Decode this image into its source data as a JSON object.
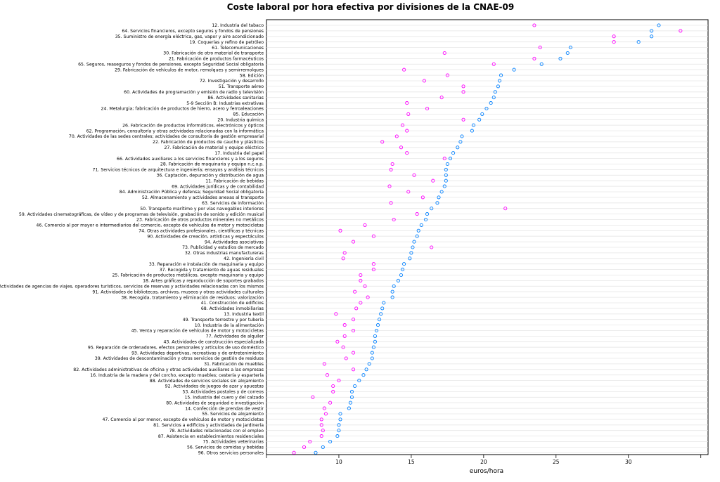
{
  "chart_data": {
    "type": "scatter",
    "title": "Coste laboral por hora efectiva por divisiones de la CNAE-09",
    "xlabel": "euros/hora",
    "xlim": [
      5,
      35.5
    ],
    "xticks": [
      10,
      15,
      20,
      25,
      30
    ],
    "grid": true,
    "series_colors": [
      "#0080ff",
      "#ff00ff"
    ],
    "categories": [
      "12. Industria del tabaco",
      "64. Servicios financieros, excepto seguros y fondos de pensiones",
      "35. Suministro de energía eléctrica, gas, vapor y aire acondicionado",
      "19. Coquerías y refino de petróleo",
      "61. Telecomunicaciones",
      "30. Fabricación de otro material de transporte",
      "21. Fabricación de productos farmacéuticos",
      "65. Seguros, reaseguros y fondos de pensiones, excepto Seguridad Social obligatoria",
      "29. Fabricación de vehículos de motor, remolques y semirremolques",
      "58. Edición",
      "72. Investigación y desarrollo",
      "51. Transporte aéreo",
      "60. Actividades de programación y emisión de radio y televisión",
      "86. Actividades sanitarias",
      "5-9 Sección B: Industrias extrativas",
      "24. Metalurgia; fabricación de productos de hierro, acero y ferroaleaciones",
      "85. Educación",
      "20. Industria química",
      "26. Fabricación de productos informáticos, electrónicos y ópticos",
      "62. Programación, consultoría y otras actividades relacionadas con la informática",
      "70. Actividades de las sedes centrales; actividades de consultoría de gestión empresarial",
      "22. Fabricación de productos de caucho y plásticos",
      "27. Fabricación de material y equipo eléctrico",
      "17. Industria del papel",
      "66. Actividades auxiliares a los servicios financieros y a los seguros",
      "28. Fabricación de maquinaria y equipo n.c.o.p.",
      "71. Servicios técnicos de arquitectura e ingeniería; ensayos y análisis técnicos",
      "36. Captación, depuración y distribución de agua",
      "11. Fabricación de bebidas",
      "69. Actividades jurídicas y de contabilidad",
      "84. Administración Pública y defensa; Seguridad Social obligatoria",
      "52. Almacenamiento y actividades anexas al transporte",
      "63. Servicios de información",
      "50. Transporte marítimo y por vías navegables interiores",
      "59. Actividades cinematográficas, de vídeo y de programas de televisión, grabación de sonido y edición musical",
      "23. Fabricación de otros productos minerales no metálicos",
      "46. Comercio al por mayor e intermediarios del comercio, excepto de vehículos de motor y motocicletas",
      "74. Otras actividades profesionales, científicas y técnicas",
      "90. Actividades de creación, artísticas y espectáculos",
      "94. Actividades asociativas",
      "73. Publicidad y estudios de mercado",
      "32. Otras industrias manufactureras",
      "42. Ingeniería civil",
      "33. Reparación e instalación de maquinaria y equipo",
      "37. Recogida y tratamiento de aguas residuales",
      "25. Fabricación de productos metálicos, excepto maquinaria y equipo",
      "18. Artes gráficas y reproducción de soportes grabados",
      "79. Actividades de agencias de viajes, operadores turísticos, servicios de reservas y actividades relacionadas con los mismos",
      "91. Actividades de bibliotecas, archivos, museos y otras actividades culturales",
      "38. Recogida, tratamiento y eliminación de residuos; valorización",
      "41. Construcción de edificios",
      "68. Actividades inmobiliarias",
      "13. Industria textil",
      "49. Transporte terrestre y por tubería",
      "10. Industria de la alimentación",
      "45. Venta y reparación de vehículos de motor y motocicletas",
      "77. Actividades de alquiler",
      "43. Actividades de construcción especializada",
      "95. Reparación de ordenadores, efectos personales y artículos de uso doméstico",
      "93. Actividades deportivas, recreativas y de entretenimiento",
      "39. Actividades de descontaminación y otros servicios de gestión de residuos",
      "31. Fabricación de muebles",
      "82. Actividades administrativas de oficina y otras actividades auxiliares a las empresas",
      "16. Industria de la madera y del corcho, excepto muebles; cestería y espartería",
      "88. Actividades de servicios sociales sin alojamiento",
      "92. Actividades de juegos de azar y apuestas",
      "53. Actividades postales y de correos",
      "15. Industria del cuero y del calzado",
      "80. Actividades de seguridad e investigación",
      "14. Confección de prendas de vestir",
      "55. Servicios de alojamiento",
      "47. Comercio al por menor, excepto de vehículos de motor y motocicletas",
      "81. Servicios a edificios y actividades de jardinería",
      "78. Actividades relacionadas con el empleo",
      "87. Asistencia en establecimientos residenciales",
      "75. Actividades veterinarias",
      "56. Servicios de comidas y bebidas",
      "96. Otros servicios personales"
    ],
    "series": [
      {
        "values": [
          32.1,
          31.6,
          31.6,
          30.7,
          26.0,
          25.8,
          25.3,
          24.0,
          22.1,
          21.2,
          21.1,
          21.0,
          20.8,
          20.7,
          20.5,
          20.2,
          19.9,
          19.7,
          19.3,
          19.2,
          18.5,
          18.4,
          18.2,
          17.9,
          17.7,
          17.5,
          17.4,
          17.4,
          17.4,
          17.3,
          17.1,
          16.9,
          16.8,
          16.4,
          16.1,
          16.0,
          15.7,
          15.5,
          15.4,
          15.2,
          15.1,
          15.0,
          14.9,
          14.5,
          14.4,
          14.3,
          14.1,
          13.8,
          13.7,
          13.7,
          13.1,
          13.0,
          12.9,
          12.8,
          12.7,
          12.6,
          12.5,
          12.5,
          12.4,
          12.3,
          12.3,
          12.1,
          11.9,
          11.7,
          11.4,
          11.1,
          10.9,
          10.9,
          10.8,
          10.7,
          10.1,
          10.1,
          10.0,
          10.0,
          9.9,
          9.4,
          8.9,
          8.4
        ]
      },
      {
        "values": [
          23.5,
          33.6,
          29.0,
          29.0,
          23.9,
          17.3,
          23.5,
          20.7,
          14.5,
          17.5,
          15.9,
          18.6,
          18.6,
          17.1,
          14.7,
          16.1,
          14.8,
          18.6,
          14.4,
          14.7,
          14.0,
          13.0,
          14.3,
          14.7,
          17.3,
          13.7,
          13.6,
          15.2,
          16.5,
          13.5,
          14.8,
          15.8,
          13.6,
          21.5,
          15.4,
          13.8,
          11.8,
          10.1,
          12.4,
          11.0,
          16.4,
          10.4,
          10.3,
          12.4,
          12.4,
          11.5,
          11.5,
          11.8,
          11.1,
          12.0,
          11.5,
          11.2,
          9.8,
          11.0,
          10.4,
          11.0,
          10.4,
          9.9,
          10.3,
          11.0,
          10.5,
          9.0,
          11.0,
          9.2,
          10.0,
          9.6,
          9.6,
          8.2,
          9.4,
          9.0,
          9.1,
          8.8,
          8.8,
          8.9,
          8.8,
          8.0,
          7.6,
          6.9
        ]
      }
    ]
  }
}
